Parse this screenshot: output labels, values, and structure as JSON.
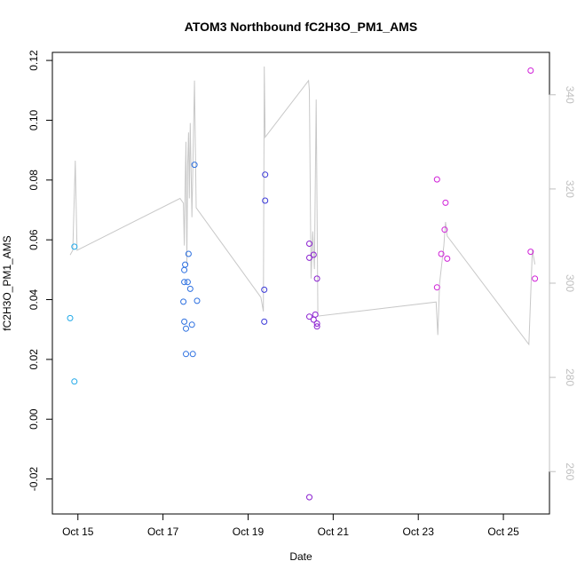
{
  "chart_data": {
    "type": "scatter",
    "title": "ATOM3 Northbound fC2H3O_PM1_AMS",
    "xlabel": "Date",
    "ylabel": "fC2H3O_PM1_AMS",
    "xlim": [
      "2016-10-14 09:36",
      "2016-10-26 02:00"
    ],
    "ylim": [
      -0.0317,
      0.1227
    ],
    "y2lim": [
      251,
      349
    ],
    "x_ticks": [
      {
        "value": "2016-10-15",
        "label": "Oct 15"
      },
      {
        "value": "2016-10-17",
        "label": "Oct 17"
      },
      {
        "value": "2016-10-19",
        "label": "Oct 19"
      },
      {
        "value": "2016-10-21",
        "label": "Oct 21"
      },
      {
        "value": "2016-10-23",
        "label": "Oct 23"
      },
      {
        "value": "2016-10-25",
        "label": "Oct 25"
      }
    ],
    "y_ticks": [
      {
        "value": -0.02,
        "label": "-0.02"
      },
      {
        "value": 0.0,
        "label": "0.00"
      },
      {
        "value": 0.02,
        "label": "0.02"
      },
      {
        "value": 0.04,
        "label": "0.04"
      },
      {
        "value": 0.06,
        "label": "0.06"
      },
      {
        "value": 0.08,
        "label": "0.08"
      },
      {
        "value": 0.1,
        "label": "0.10"
      },
      {
        "value": 0.12,
        "label": "0.12"
      }
    ],
    "y2_ticks": [
      {
        "value": 260,
        "label": "260"
      },
      {
        "value": 280,
        "label": "280"
      },
      {
        "value": 300,
        "label": "300"
      },
      {
        "value": 320,
        "label": "320"
      },
      {
        "value": 340,
        "label": "340"
      }
    ],
    "points": [
      {
        "x": "2016-10-14 19:36",
        "y": 0.0338,
        "color": "#1fa8e8"
      },
      {
        "x": "2016-10-14 22:00",
        "y": 0.0577,
        "color": "#1fa8e8"
      },
      {
        "x": "2016-10-14 22:00",
        "y": 0.0126,
        "color": "#1fa8e8"
      },
      {
        "x": "2016-10-17 11:31",
        "y": 0.0393,
        "color": "#2b6fe0"
      },
      {
        "x": "2016-10-17 12:00",
        "y": 0.0459,
        "color": "#2b6fe0"
      },
      {
        "x": "2016-10-17 12:00",
        "y": 0.0499,
        "color": "#2b6fe0"
      },
      {
        "x": "2016-10-17 12:29",
        "y": 0.0517,
        "color": "#2b6fe0"
      },
      {
        "x": "2016-10-17 12:00",
        "y": 0.0326,
        "color": "#2b6fe0"
      },
      {
        "x": "2016-10-17 12:58",
        "y": 0.0303,
        "color": "#2b6fe0"
      },
      {
        "x": "2016-10-17 12:58",
        "y": 0.0218,
        "color": "#2b6fe0"
      },
      {
        "x": "2016-10-17 13:55",
        "y": 0.0459,
        "color": "#2b6fe0"
      },
      {
        "x": "2016-10-17 14:24",
        "y": 0.0553,
        "color": "#2b6fe0"
      },
      {
        "x": "2016-10-17 15:22",
        "y": 0.0436,
        "color": "#2b6fe0"
      },
      {
        "x": "2016-10-17 16:19",
        "y": 0.0316,
        "color": "#2b6fe0"
      },
      {
        "x": "2016-10-17 16:48",
        "y": 0.0218,
        "color": "#2b6fe0"
      },
      {
        "x": "2016-10-17 17:46",
        "y": 0.0851,
        "color": "#2b6fe0"
      },
      {
        "x": "2016-10-17 19:12",
        "y": 0.0396,
        "color": "#2b6fe0"
      },
      {
        "x": "2016-10-19 09:36",
        "y": 0.0818,
        "color": "#3a38d8"
      },
      {
        "x": "2016-10-19 09:36",
        "y": 0.0731,
        "color": "#3a38d8"
      },
      {
        "x": "2016-10-19 09:07",
        "y": 0.0433,
        "color": "#3a38d8"
      },
      {
        "x": "2016-10-19 09:07",
        "y": 0.0326,
        "color": "#3a38d8"
      },
      {
        "x": "2016-10-20 10:34",
        "y": 0.0587,
        "color": "#8a1fd0"
      },
      {
        "x": "2016-10-20 10:34",
        "y": 0.054,
        "color": "#8a1fd0"
      },
      {
        "x": "2016-10-20 10:34",
        "y": 0.0343,
        "color": "#8a1fd0"
      },
      {
        "x": "2016-10-20 12:58",
        "y": 0.0333,
        "color": "#8a1fd0"
      },
      {
        "x": "2016-10-20 12:58",
        "y": 0.055,
        "color": "#8a1fd0"
      },
      {
        "x": "2016-10-20 13:55",
        "y": 0.035,
        "color": "#8a1fd0"
      },
      {
        "x": "2016-10-20 14:53",
        "y": 0.047,
        "color": "#8a1fd0"
      },
      {
        "x": "2016-10-20 14:53",
        "y": 0.032,
        "color": "#8a1fd0"
      },
      {
        "x": "2016-10-20 14:53",
        "y": 0.031,
        "color": "#8a1fd0"
      },
      {
        "x": "2016-10-20 10:34",
        "y": -0.0261,
        "color": "#8a1fd0"
      },
      {
        "x": "2016-10-23 10:34",
        "y": 0.0802,
        "color": "#d020d8"
      },
      {
        "x": "2016-10-23 10:34",
        "y": 0.0441,
        "color": "#d020d8"
      },
      {
        "x": "2016-10-23 12:58",
        "y": 0.0553,
        "color": "#d020d8"
      },
      {
        "x": "2016-10-23 15:22",
        "y": 0.0724,
        "color": "#d020d8"
      },
      {
        "x": "2016-10-23 14:53",
        "y": 0.0634,
        "color": "#d020d8"
      },
      {
        "x": "2016-10-23 16:19",
        "y": 0.0537,
        "color": "#d020d8"
      },
      {
        "x": "2016-10-25 15:22",
        "y": 0.1166,
        "color": "#d020d8"
      },
      {
        "x": "2016-10-25 15:22",
        "y": 0.056,
        "color": "#d020d8"
      },
      {
        "x": "2016-10-25 17:46",
        "y": 0.047,
        "color": "#d020d8"
      }
    ],
    "line_series": {
      "axis": "right",
      "color": "#c8c8c8",
      "points": [
        {
          "x": "2016-10-14 19:36",
          "y": 306
        },
        {
          "x": "2016-10-14 21:07",
          "y": 307
        },
        {
          "x": "2016-10-14 22:30",
          "y": 326
        },
        {
          "x": "2016-10-14 23:31",
          "y": 307
        },
        {
          "x": "2016-10-17 09:36",
          "y": 318
        },
        {
          "x": "2016-10-17 11:31",
          "y": 317
        },
        {
          "x": "2016-10-17 12:00",
          "y": 308
        },
        {
          "x": "2016-10-17 12:29",
          "y": 321
        },
        {
          "x": "2016-10-17 12:58",
          "y": 330
        },
        {
          "x": "2016-10-17 13:26",
          "y": 304
        },
        {
          "x": "2016-10-17 13:55",
          "y": 325
        },
        {
          "x": "2016-10-17 14:24",
          "y": 332
        },
        {
          "x": "2016-10-17 14:53",
          "y": 318
        },
        {
          "x": "2016-10-17 15:22",
          "y": 334
        },
        {
          "x": "2016-10-17 16:19",
          "y": 314
        },
        {
          "x": "2016-10-17 17:46",
          "y": 343
        },
        {
          "x": "2016-10-17 18:43",
          "y": 316
        },
        {
          "x": "2016-10-19 07:12",
          "y": 297
        },
        {
          "x": "2016-10-19 08:38",
          "y": 294
        },
        {
          "x": "2016-10-19 09:07",
          "y": 346
        },
        {
          "x": "2016-10-19 09:36",
          "y": 331
        },
        {
          "x": "2016-10-20 10:05",
          "y": 343
        },
        {
          "x": "2016-10-20 10:34",
          "y": 341
        },
        {
          "x": "2016-10-20 11:31",
          "y": 301
        },
        {
          "x": "2016-10-20 12:29",
          "y": 311
        },
        {
          "x": "2016-10-20 13:26",
          "y": 303
        },
        {
          "x": "2016-10-20 14:24",
          "y": 339
        },
        {
          "x": "2016-10-20 15:22",
          "y": 293
        },
        {
          "x": "2016-10-23 10:05",
          "y": 296
        },
        {
          "x": "2016-10-23 11:02",
          "y": 289
        },
        {
          "x": "2016-10-23 12:00",
          "y": 300
        },
        {
          "x": "2016-10-23 14:24",
          "y": 308
        },
        {
          "x": "2016-10-23 15:22",
          "y": 313
        },
        {
          "x": "2016-10-23 16:19",
          "y": 310
        },
        {
          "x": "2016-10-25 14:24",
          "y": 287
        },
        {
          "x": "2016-10-25 16:19",
          "y": 307
        },
        {
          "x": "2016-10-25 17:46",
          "y": 304
        }
      ]
    }
  }
}
